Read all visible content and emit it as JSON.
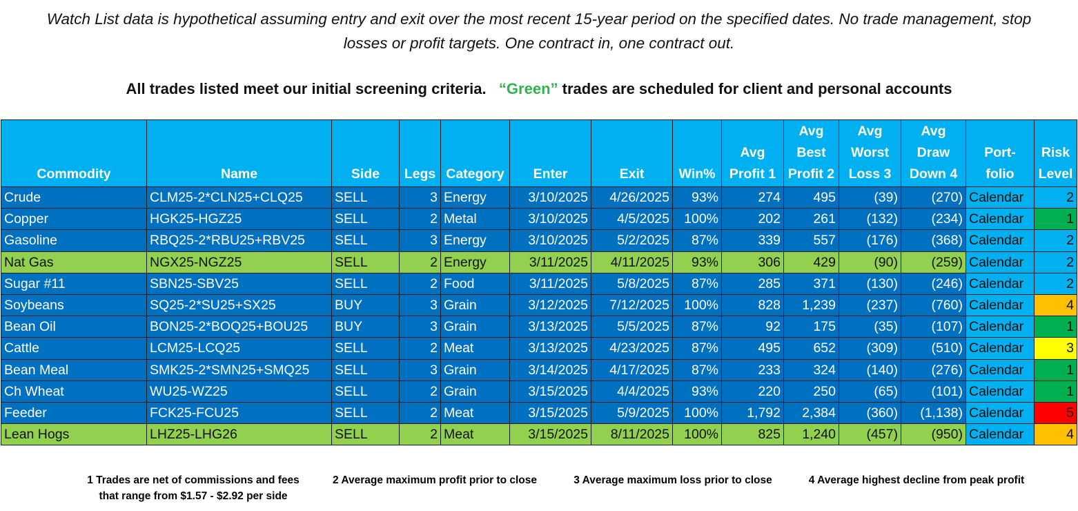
{
  "header": {
    "note": "Watch List data is hypothetical assuming entry and exit over the most recent 15-year period on the specified dates.  No trade management, stop losses or profit targets.  One contract in, one contract out.",
    "criteria": {
      "before": "All trades listed meet our initial screening criteria.",
      "green": "“Green”",
      "after": "trades are scheduled for client and personal accounts",
      "green_color": "#2fb34a"
    }
  },
  "table": {
    "columns": [
      "Commodity",
      "Name",
      "Side",
      "Legs",
      "Category",
      "Enter",
      "Exit",
      "Win%",
      "Avg\nProfit 1",
      "Avg\nBest\nProfit 2",
      "Avg\nWorst\nLoss 3",
      "Avg\nDraw\nDown 4",
      "Port-\nfolio",
      "Risk\nLevel"
    ],
    "align": [
      "left",
      "left",
      "left",
      "right",
      "left",
      "right",
      "right",
      "right",
      "right",
      "right",
      "right",
      "right",
      "left",
      "right"
    ],
    "header_color": "#00b0f0",
    "row_color": "#0070c0",
    "highlight_color": "#92d050",
    "portfolio_color": "#00b0f0",
    "risk_colors": {
      "1": "#00b050",
      "2": "#00b0f0",
      "3": "#ffff00",
      "4": "#ffc000",
      "5": "#ff0000"
    },
    "rows": [
      {
        "highlight": false,
        "cells": [
          "Crude",
          "CLM25-2*CLN25+CLQ25",
          "SELL",
          "3",
          "Energy",
          "3/10/2025",
          "4/26/2025",
          "93%",
          "274",
          "495",
          "(39)",
          "(270)",
          "Calendar",
          "2"
        ]
      },
      {
        "highlight": false,
        "cells": [
          "Copper",
          "HGK25-HGZ25",
          "SELL",
          "2",
          "Metal",
          "3/10/2025",
          "4/5/2025",
          "100%",
          "202",
          "261",
          "(132)",
          "(234)",
          "Calendar",
          "1"
        ]
      },
      {
        "highlight": false,
        "cells": [
          "Gasoline",
          "RBQ25-2*RBU25+RBV25",
          "SELL",
          "3",
          "Energy",
          "3/10/2025",
          "5/2/2025",
          "87%",
          "339",
          "557",
          "(176)",
          "(368)",
          "Calendar",
          "2"
        ]
      },
      {
        "highlight": true,
        "cells": [
          "Nat Gas",
          "NGX25-NGZ25",
          "SELL",
          "2",
          "Energy",
          "3/11/2025",
          "4/11/2025",
          "93%",
          "306",
          "429",
          "(90)",
          "(259)",
          "Calendar",
          "2"
        ]
      },
      {
        "highlight": false,
        "cells": [
          "Sugar #11",
          "SBN25-SBV25",
          "SELL",
          "2",
          "Food",
          "3/11/2025",
          "5/8/2025",
          "87%",
          "285",
          "371",
          "(130)",
          "(246)",
          "Calendar",
          "2"
        ]
      },
      {
        "highlight": false,
        "cells": [
          "Soybeans",
          "SQ25-2*SU25+SX25",
          "BUY",
          "3",
          "Grain",
          "3/12/2025",
          "7/12/2025",
          "100%",
          "828",
          "1,239",
          "(237)",
          "(760)",
          "Calendar",
          "4"
        ]
      },
      {
        "highlight": false,
        "cells": [
          "Bean Oil",
          "BON25-2*BOQ25+BOU25",
          "BUY",
          "3",
          "Grain",
          "3/13/2025",
          "5/5/2025",
          "87%",
          "92",
          "175",
          "(35)",
          "(107)",
          "Calendar",
          "1"
        ]
      },
      {
        "highlight": false,
        "cells": [
          "Cattle",
          "LCM25-LCQ25",
          "SELL",
          "2",
          "Meat",
          "3/13/2025",
          "4/23/2025",
          "87%",
          "495",
          "652",
          "(309)",
          "(510)",
          "Calendar",
          "3"
        ]
      },
      {
        "highlight": false,
        "cells": [
          "Bean Meal",
          "SMK25-2*SMN25+SMQ25",
          "SELL",
          "3",
          "Grain",
          "3/14/2025",
          "4/17/2025",
          "87%",
          "233",
          "324",
          "(140)",
          "(276)",
          "Calendar",
          "1"
        ]
      },
      {
        "highlight": false,
        "cells": [
          "Ch Wheat",
          "WU25-WZ25",
          "SELL",
          "2",
          "Grain",
          "3/15/2025",
          "4/4/2025",
          "93%",
          "220",
          "250",
          "(65)",
          "(101)",
          "Calendar",
          "1"
        ]
      },
      {
        "highlight": false,
        "cells": [
          "Feeder",
          "FCK25-FCU25",
          "SELL",
          "2",
          "Meat",
          "3/15/2025",
          "5/9/2025",
          "100%",
          "1,792",
          "2,384",
          "(360)",
          "(1,138)",
          "Calendar",
          "5"
        ]
      },
      {
        "highlight": true,
        "cells": [
          "Lean Hogs",
          "LHZ25-LHG26",
          "SELL",
          "2",
          "Meat",
          "3/15/2025",
          "8/11/2025",
          "100%",
          "825",
          "1,240",
          "(457)",
          "(950)",
          "Calendar",
          "4"
        ]
      }
    ]
  },
  "footnotes": [
    "1 Trades are net of commissions and fees\nthat range from $1.57 - $2.92 per side",
    "2 Average maximum profit prior to close",
    "3 Average maximum loss prior to close",
    "4 Average highest decline from peak profit"
  ]
}
